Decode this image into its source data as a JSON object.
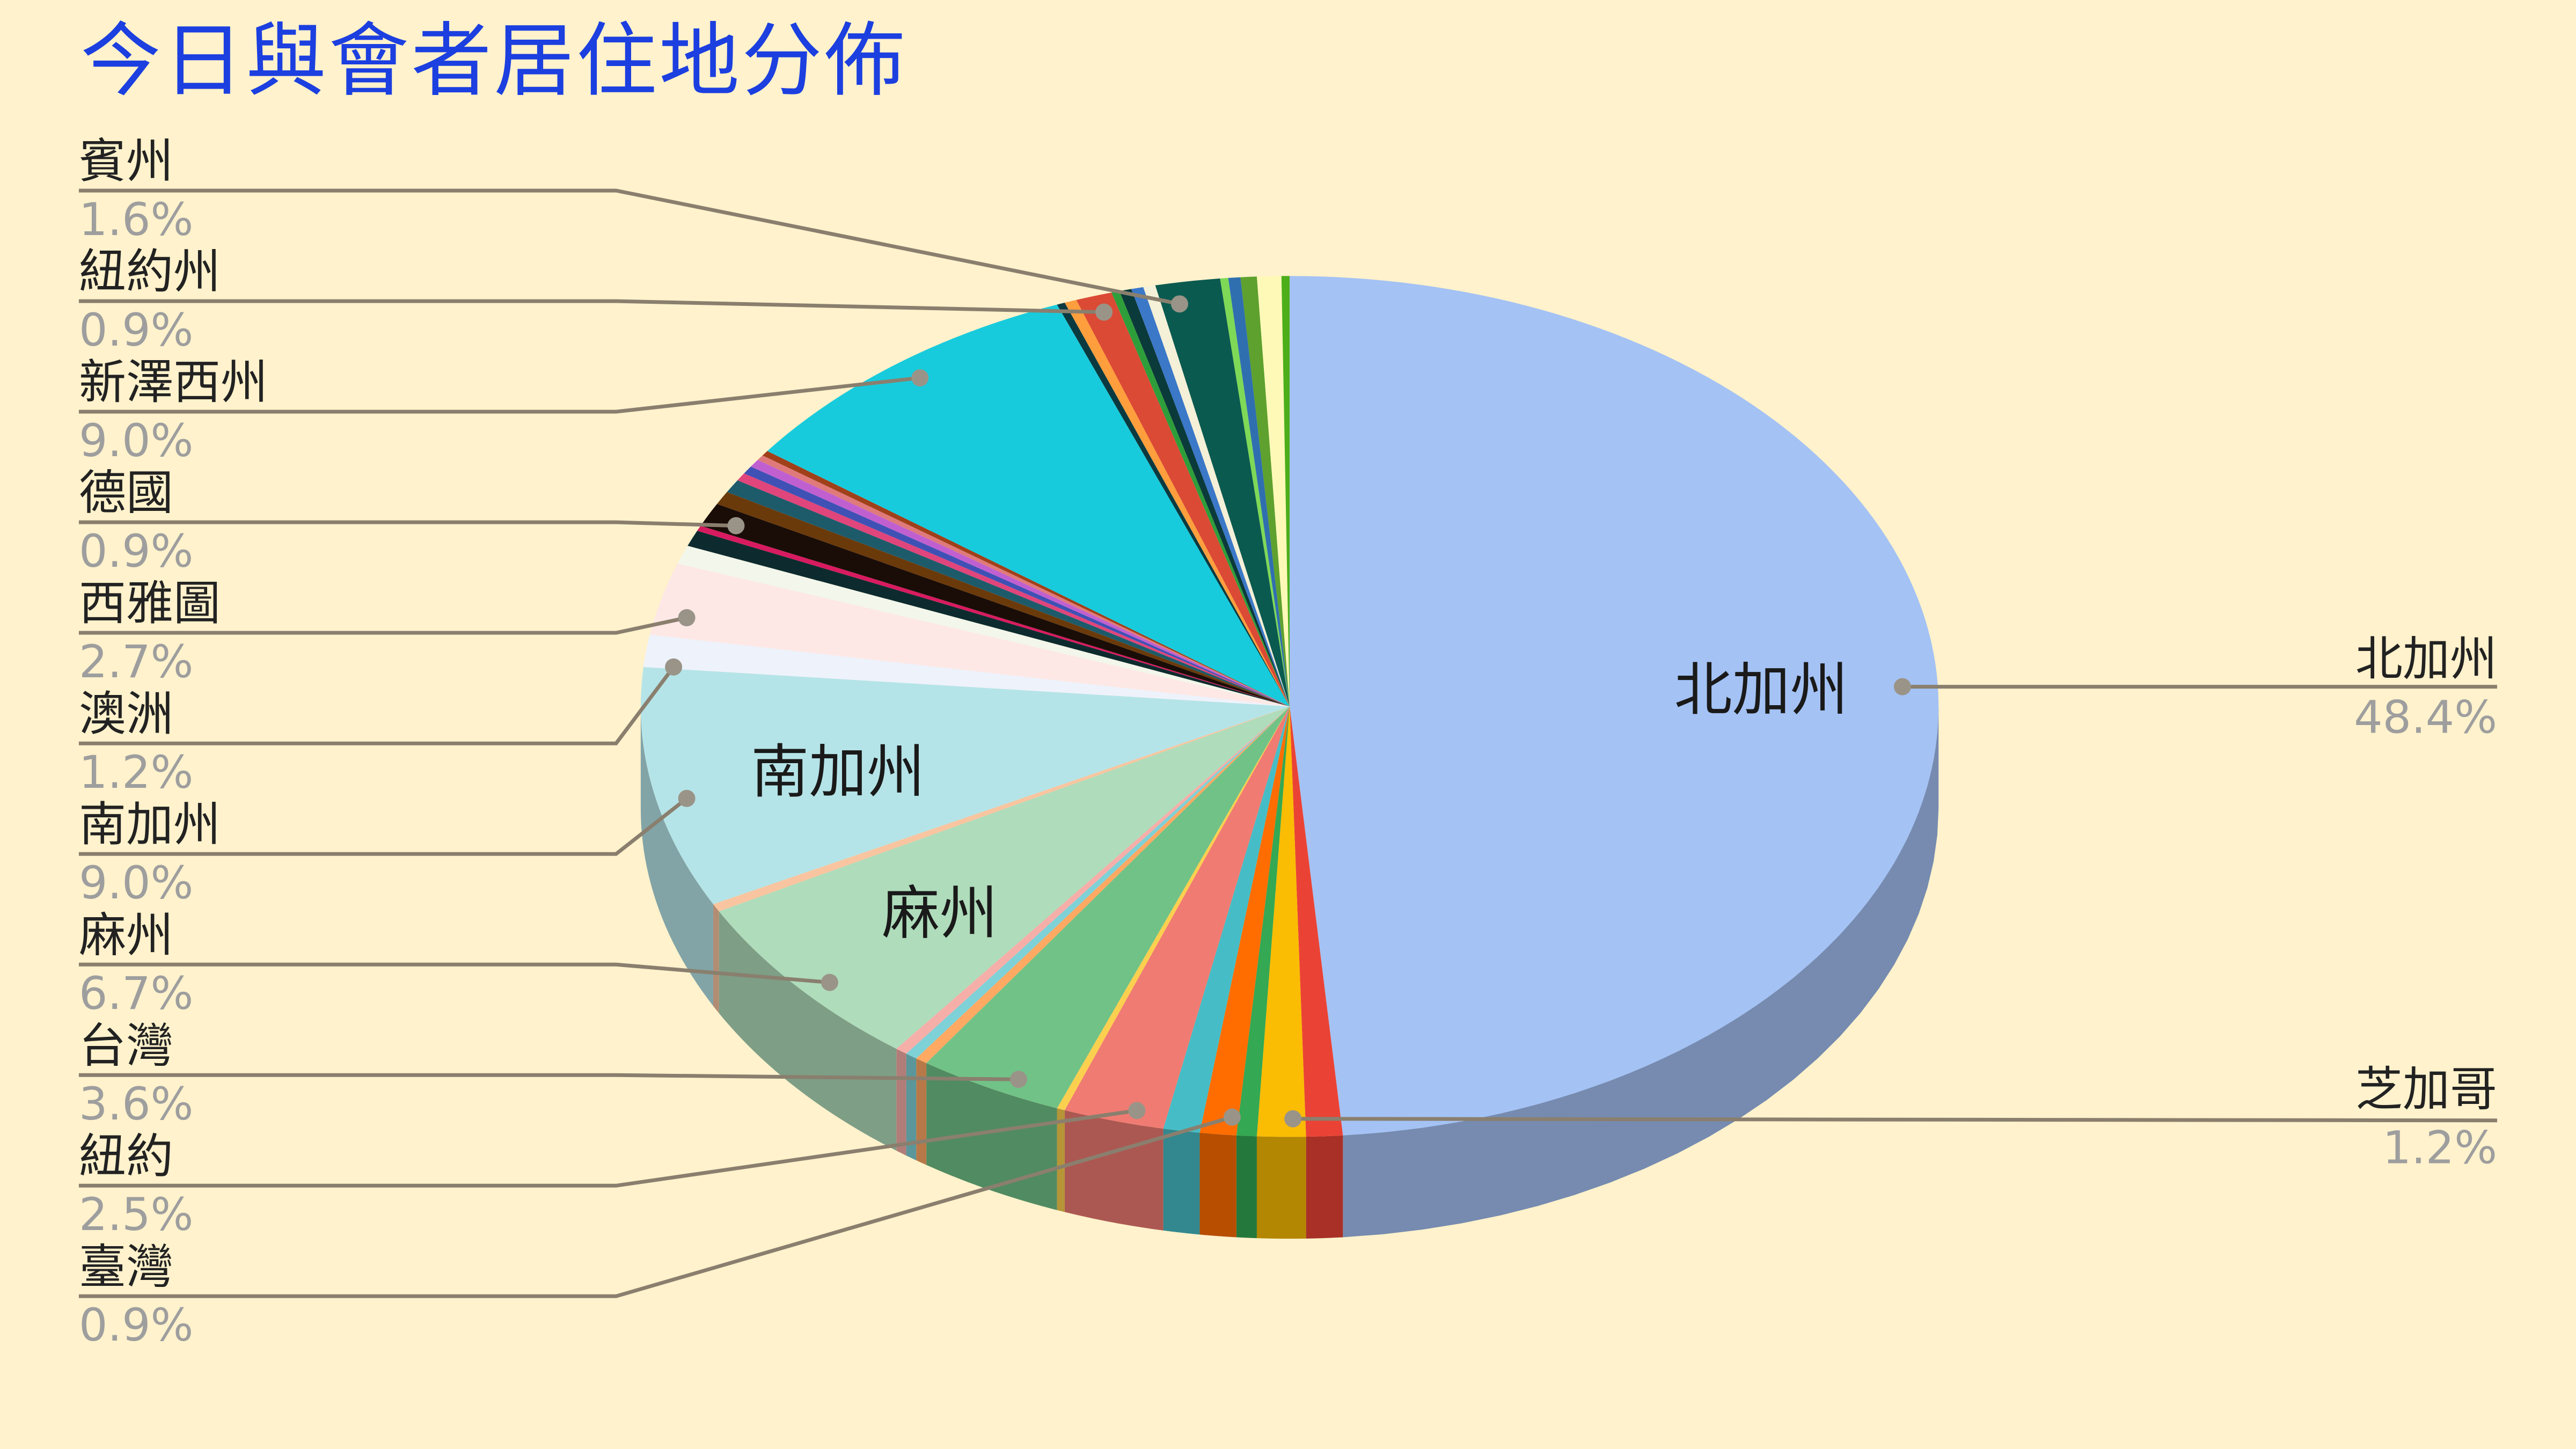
{
  "chart_data": {
    "type": "pie",
    "style": "3d",
    "title": "今日與會者居住地分佈",
    "start": "12 o'clock, clockwise",
    "slices": [
      {
        "name": "北加州",
        "value": 48.4,
        "color": "#a4c2f4",
        "label": "北加州",
        "pct": "48.4%",
        "inside": true
      },
      {
        "name": "",
        "value": 0.9,
        "color": "#ea4335"
      },
      {
        "name": "芝加哥",
        "value": 1.2,
        "color": "#fbbc04",
        "label": "芝加哥",
        "pct": "1.2%"
      },
      {
        "name": "",
        "value": 0.5,
        "color": "#34a853"
      },
      {
        "name": "",
        "value": 0.9,
        "color": "#ff6d01"
      },
      {
        "name": "臺灣",
        "value": 0.9,
        "color": "#46bdc6",
        "label": "臺灣",
        "pct": "0.9%"
      },
      {
        "name": "紐約",
        "value": 2.5,
        "color": "#f07b72",
        "label": "紐約",
        "pct": "2.5%"
      },
      {
        "name": "",
        "value": 0.2,
        "color": "#fcd04f"
      },
      {
        "name": "台灣",
        "value": 3.6,
        "color": "#71c287",
        "label": "台灣",
        "pct": "3.6%"
      },
      {
        "name": "",
        "value": 0.3,
        "color": "#ffa963"
      },
      {
        "name": "",
        "value": 0.3,
        "color": "#7ed1d7"
      },
      {
        "name": "",
        "value": 0.3,
        "color": "#f6aea9"
      },
      {
        "name": "麻州",
        "value": 6.7,
        "color": "#afdcbb",
        "label": "麻州",
        "pct": "6.7%",
        "inside": true
      },
      {
        "name": "",
        "value": 0.3,
        "color": "#f8c5a0"
      },
      {
        "name": "南加州",
        "value": 9.0,
        "color": "#b5e4e8",
        "label": "南加州",
        "pct": "9.0%",
        "inside": true
      },
      {
        "name": "澳洲",
        "value": 1.2,
        "color": "#eef2fb",
        "label": "澳洲",
        "pct": "1.2%"
      },
      {
        "name": "西雅圖",
        "value": 2.7,
        "color": "#fde8e6",
        "label": "西雅圖",
        "pct": "2.7%"
      },
      {
        "name": "",
        "value": 0.7,
        "color": "#f3f6ea"
      },
      {
        "name": "",
        "value": 0.6,
        "color": "#0d2b2e"
      },
      {
        "name": "",
        "value": 0.2,
        "color": "#d81b60"
      },
      {
        "name": "德國",
        "value": 0.9,
        "color": "#1a0d08",
        "label": "德國",
        "pct": "0.9%"
      },
      {
        "name": "",
        "value": 0.5,
        "color": "#6b3a0b"
      },
      {
        "name": "",
        "value": 0.5,
        "color": "#1d5b6b"
      },
      {
        "name": "",
        "value": 0.3,
        "color": "#e0457b"
      },
      {
        "name": "",
        "value": 0.3,
        "color": "#3f51b5"
      },
      {
        "name": "",
        "value": 0.3,
        "color": "#c060d0"
      },
      {
        "name": "",
        "value": 0.2,
        "color": "#e07a7a"
      },
      {
        "name": "",
        "value": 0.2,
        "color": "#a0401a"
      },
      {
        "name": "新澤西州",
        "value": 9.0,
        "color": "#18cbdc",
        "label": "新澤西州",
        "pct": "9.0%"
      },
      {
        "name": "",
        "value": 0.2,
        "color": "#0a3a40"
      },
      {
        "name": "",
        "value": 0.3,
        "color": "#ff9e3d"
      },
      {
        "name": "紐約州",
        "value": 0.9,
        "color": "#db4a35",
        "label": "紐約州",
        "pct": "0.9%"
      },
      {
        "name": "",
        "value": 0.2,
        "color": "#2e9e3a"
      },
      {
        "name": "",
        "value": 0.3,
        "color": "#0b3a3a"
      },
      {
        "name": "",
        "value": 0.3,
        "color": "#3b78c8"
      },
      {
        "name": "",
        "value": 0.3,
        "color": "#f5f0d8"
      },
      {
        "name": "賓州",
        "value": 1.6,
        "color": "#0b5a50",
        "label": "賓州",
        "pct": "1.6%"
      },
      {
        "name": "",
        "value": 0.2,
        "color": "#7ed957"
      },
      {
        "name": "",
        "value": 0.3,
        "color": "#2f6fb0"
      },
      {
        "name": "",
        "value": 0.4,
        "color": "#5ea12e"
      },
      {
        "name": "",
        "value": 0.6,
        "color": "#fff9b8"
      },
      {
        "name": "",
        "value": 0.2,
        "color": "#4caf1a"
      }
    ]
  },
  "colors": {
    "background": "#fff2cc",
    "title": "#1c3fe0",
    "leader": "#8a7f6e",
    "percent": "#9e9e9e"
  }
}
